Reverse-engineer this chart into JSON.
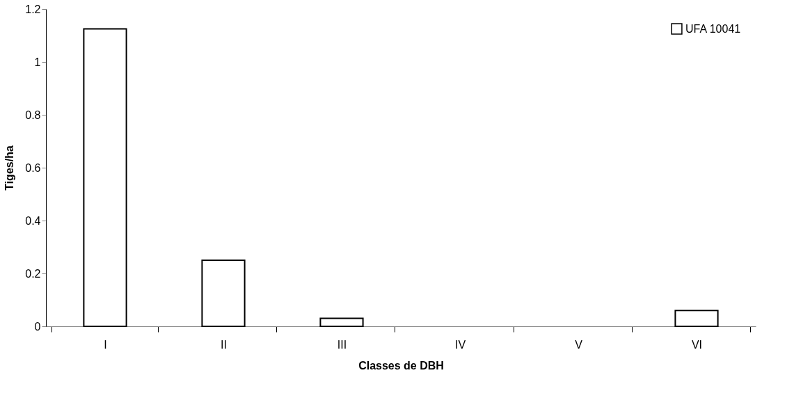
{
  "chart_data": {
    "type": "bar",
    "xlabel": "Classes de DBH",
    "ylabel": "Tiges/ha",
    "categories": [
      "I",
      "II",
      "III",
      "IV",
      "V",
      "VI"
    ],
    "series": [
      {
        "name": "UFA 10041",
        "color": "#ffffff",
        "values": [
          1.125,
          0.25,
          0.03,
          0,
          0,
          0.06
        ]
      }
    ],
    "ylim": [
      0,
      1.2
    ],
    "yticks": [
      0,
      0.2,
      0.4,
      0.6,
      0.8,
      1,
      1.2
    ],
    "grid": false,
    "legend": "top right"
  }
}
